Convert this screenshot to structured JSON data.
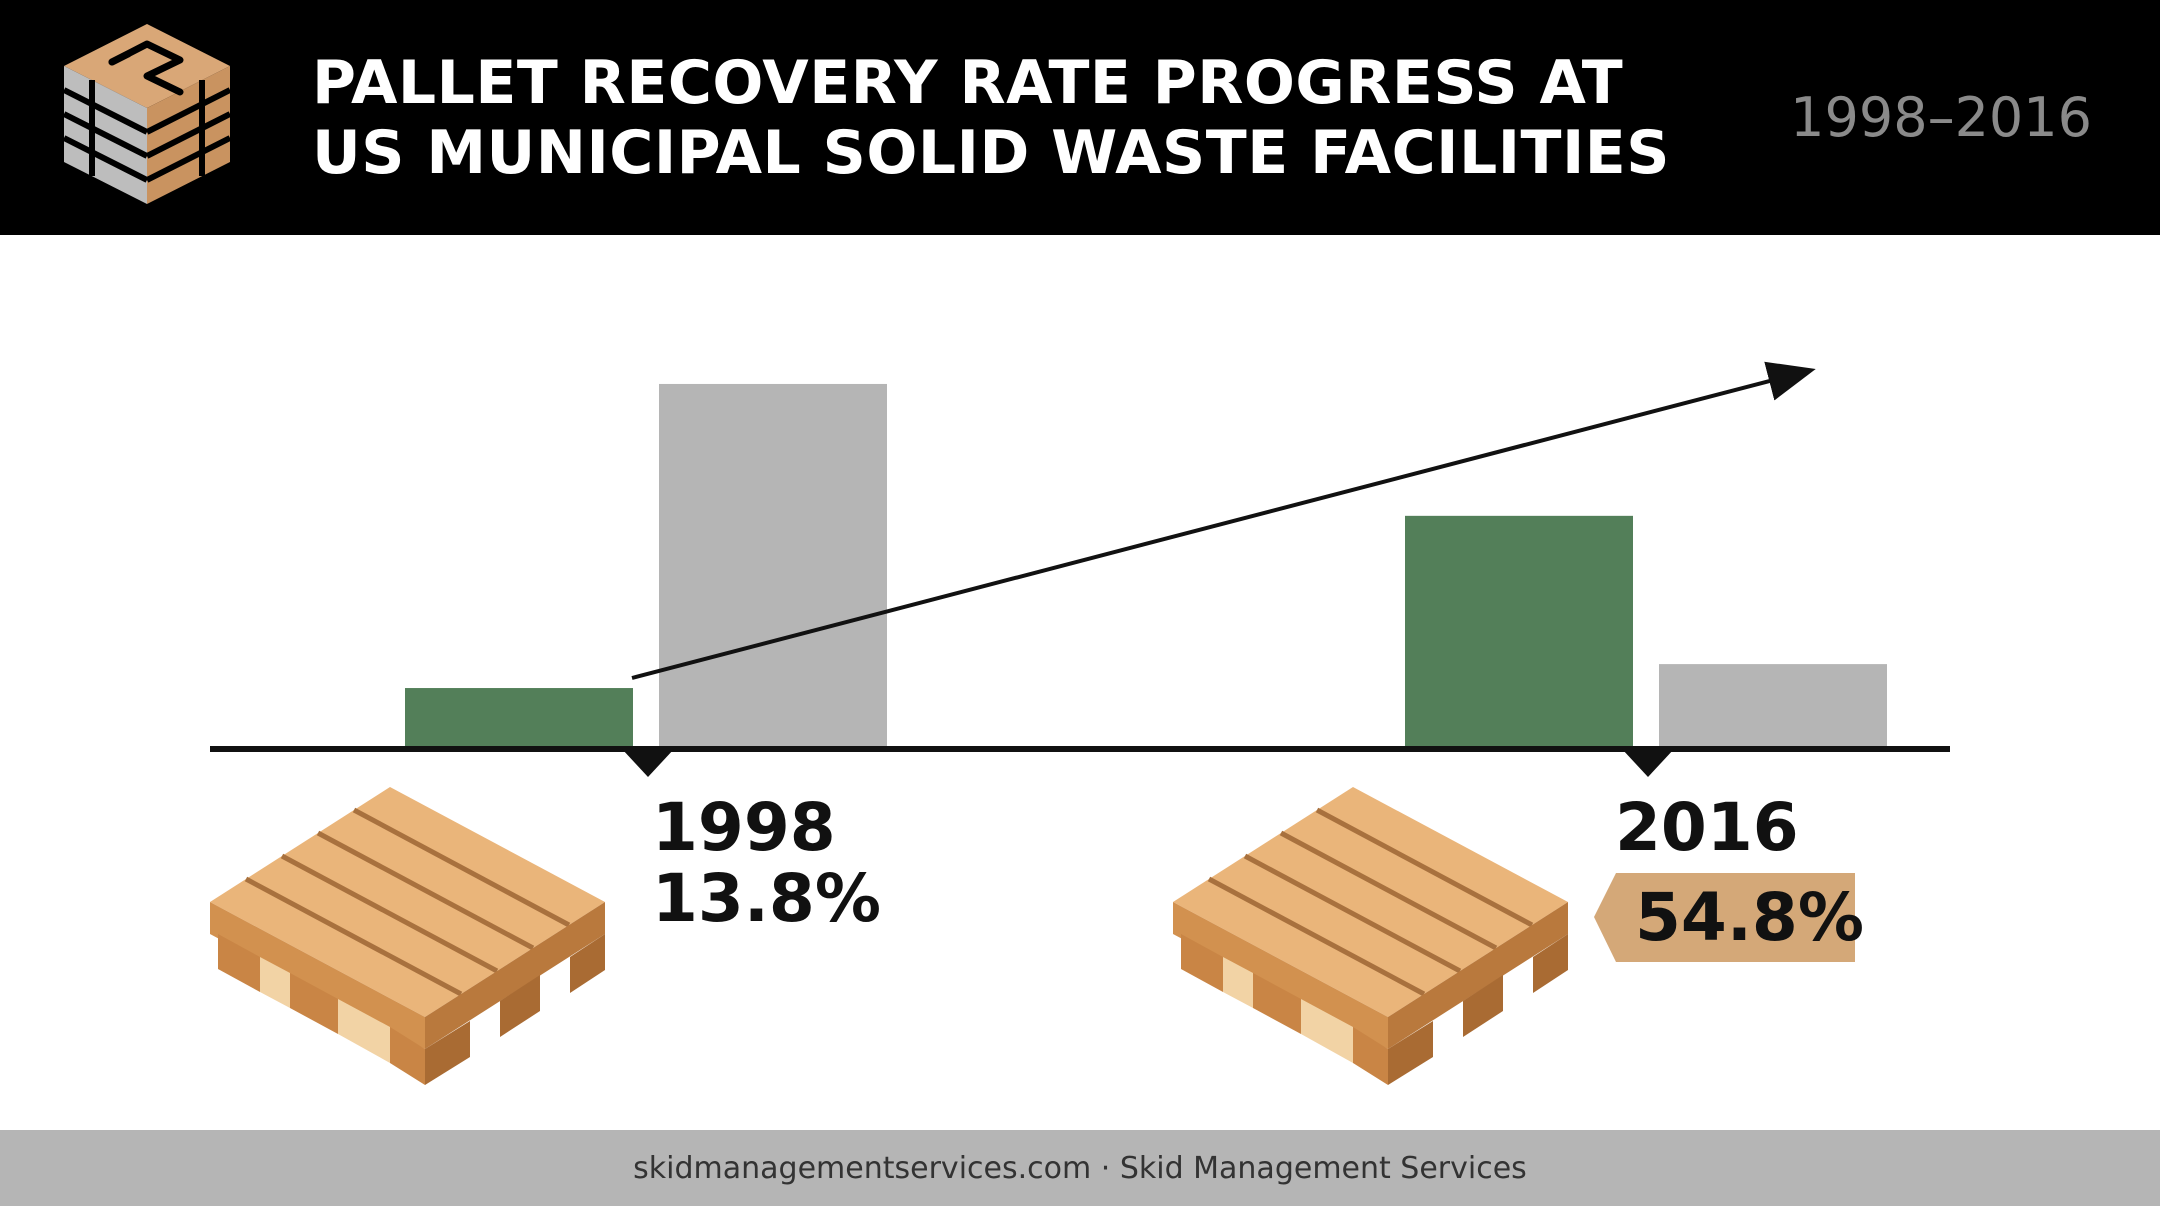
{
  "header": {
    "title_line1": "PALLET RECOVERY RATE PROGRESS AT",
    "title_line2": "US MUNICIPAL SOLID WASTE FACILITIES",
    "date_range": "1998–2016"
  },
  "footer": {
    "text": "skidmanagementservices.com · Skid Management Services"
  },
  "colors": {
    "header_bg": "#000000",
    "recovered_bar": "#537f59",
    "other_bar": "#b5b5b5",
    "highlight_badge": "#d4a878",
    "pallet_wood": "#e0a667"
  },
  "icons": [
    "pallet-stack-logo-icon",
    "pallet-icon",
    "trend-arrow-icon"
  ],
  "chart_data": {
    "type": "bar",
    "title": "PALLET RECOVERY RATE PROGRESS AT US MUNICIPAL SOLID WASTE FACILITIES",
    "categories": [
      "1998",
      "2016"
    ],
    "series": [
      {
        "values": [
          13.8,
          54.8
        ]
      },
      {
        "values": [
          86.2,
          19.5
        ]
      }
    ],
    "data_labels": [
      "13.8%",
      "54.8%"
    ],
    "ylim": [
      0,
      100
    ],
    "grid": false,
    "legend": "none",
    "annotations": [
      "trend arrow rising from 1998 recovered bar toward upper right"
    ]
  }
}
